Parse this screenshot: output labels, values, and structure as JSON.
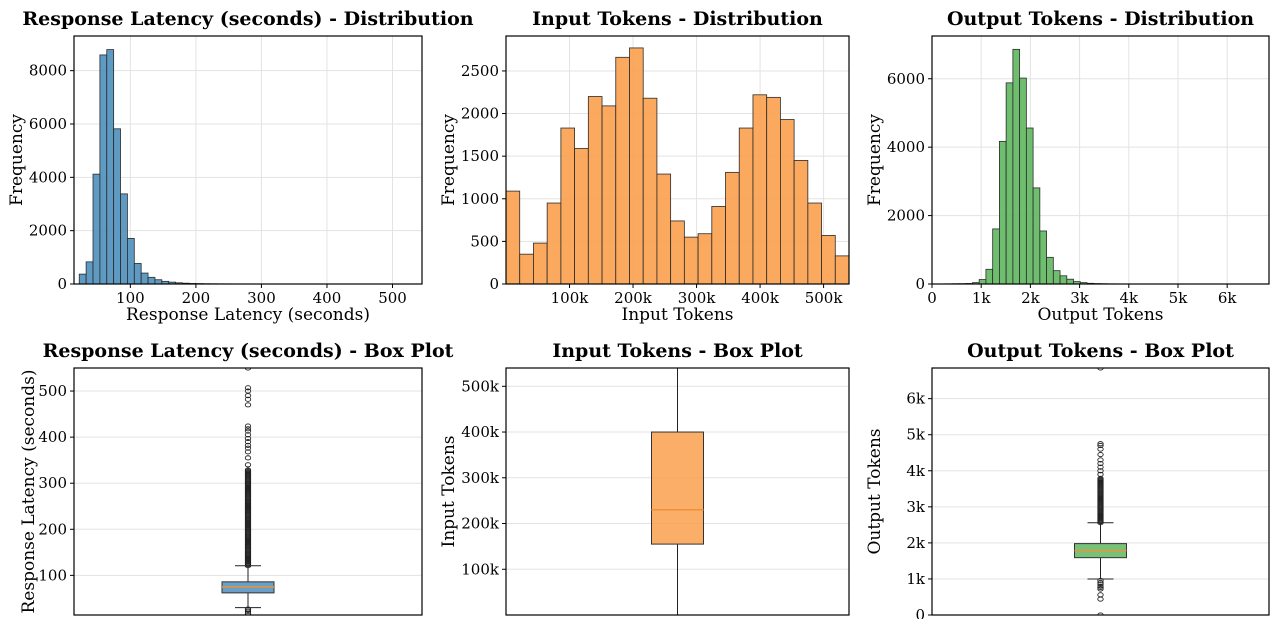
{
  "chart_data": [
    {
      "type": "histogram",
      "title": "Response Latency (seconds) - Distribution",
      "xlabel": "Response Latency (seconds)",
      "ylabel": "Frequency",
      "xlim": [
        14,
        545
      ],
      "ylim": [
        0,
        9300
      ],
      "xticks": [
        100,
        200,
        300,
        400,
        500
      ],
      "xtick_labels": [
        "100",
        "200",
        "300",
        "400",
        "500"
      ],
      "yticks": [
        0,
        2000,
        4000,
        6000,
        8000
      ],
      "ytick_labels": [
        "0",
        "2000",
        "4000",
        "6000",
        "8000"
      ],
      "grid": true,
      "color": "#4e8fbd",
      "bin_start": 22,
      "bin_width": 10.5,
      "values": [
        370,
        830,
        4120,
        8590,
        8790,
        5820,
        3380,
        1710,
        770,
        410,
        250,
        160,
        100,
        70,
        45,
        30,
        20,
        15,
        10,
        8,
        6,
        5,
        4,
        3,
        3,
        2,
        2,
        2,
        2,
        1,
        1,
        1,
        1,
        1,
        1,
        1,
        1,
        1,
        1,
        1,
        1,
        1,
        1,
        1,
        1,
        1,
        1,
        1,
        1,
        1
      ]
    },
    {
      "type": "histogram",
      "title": "Input Tokens - Distribution",
      "xlabel": "Input Tokens",
      "ylabel": "Frequency",
      "xlim": [
        0,
        540000
      ],
      "ylim": [
        0,
        2910
      ],
      "xticks": [
        100000,
        200000,
        300000,
        400000,
        500000
      ],
      "xtick_labels": [
        "100k",
        "200k",
        "300k",
        "400k",
        "500k"
      ],
      "yticks": [
        0,
        500,
        1000,
        1500,
        2000,
        2500
      ],
      "ytick_labels": [
        "0",
        "500",
        "1000",
        "1500",
        "2000",
        "2500"
      ],
      "grid": true,
      "color": "#f9a04e",
      "bin_start": 0,
      "bin_width": 21600,
      "values": [
        1090,
        350,
        480,
        950,
        1830,
        1590,
        2200,
        2090,
        2660,
        2770,
        2180,
        1290,
        740,
        550,
        590,
        910,
        1310,
        1830,
        2220,
        2190,
        1930,
        1450,
        950,
        570,
        330
      ]
    },
    {
      "type": "histogram",
      "title": "Output Tokens - Distribution",
      "xlabel": "Output Tokens",
      "ylabel": "Frequency",
      "xlim": [
        0,
        6850
      ],
      "ylim": [
        0,
        7250
      ],
      "xticks": [
        0,
        1000,
        2000,
        3000,
        4000,
        5000,
        6000
      ],
      "xtick_labels": [
        "0",
        "1k",
        "2k",
        "3k",
        "4k",
        "5k",
        "6k"
      ],
      "yticks": [
        0,
        2000,
        4000,
        6000
      ],
      "ytick_labels": [
        "0",
        "2000",
        "4000",
        "6000"
      ],
      "grid": true,
      "color": "#5fb760",
      "bin_start": 0,
      "bin_width": 137,
      "values": [
        2,
        3,
        5,
        8,
        10,
        15,
        40,
        130,
        430,
        1610,
        4170,
        5880,
        6860,
        6020,
        4560,
        2810,
        1550,
        780,
        390,
        240,
        140,
        70,
        40,
        20,
        12,
        8,
        5,
        4,
        3,
        2,
        2,
        1,
        1,
        1,
        1,
        1,
        1,
        1,
        1,
        1,
        1,
        1,
        1,
        1,
        1,
        1,
        1,
        1,
        1,
        1
      ]
    },
    {
      "type": "box",
      "title": "Response Latency (seconds) - Box Plot",
      "ylabel": "Response Latency (seconds)",
      "ylim": [
        14,
        550
      ],
      "yticks": [
        100,
        200,
        300,
        400,
        500
      ],
      "ytick_labels": [
        "100",
        "200",
        "300",
        "400",
        "500"
      ],
      "grid": true,
      "color": "#4e8fbd",
      "whisker_low": 30,
      "q1": 62,
      "median": 75,
      "q3": 86,
      "whisker_high": 121,
      "outliers_high_dense_to": 330,
      "outliers_high": [
        340,
        355,
        368,
        376,
        382,
        390,
        397,
        405,
        413,
        418,
        424,
        470,
        482,
        490,
        500,
        507,
        550
      ],
      "outliers_low": [
        14,
        18,
        22,
        25,
        27
      ]
    },
    {
      "type": "box",
      "title": "Input Tokens - Box Plot",
      "ylabel": "Input Tokens",
      "ylim": [
        0,
        540000
      ],
      "yticks": [
        100000,
        200000,
        300000,
        400000,
        500000
      ],
      "ytick_labels": [
        "100k",
        "200k",
        "300k",
        "400k",
        "500k"
      ],
      "grid": true,
      "color": "#f9a04e",
      "whisker_low": 0,
      "q1": 155000,
      "median": 230000,
      "q3": 400000,
      "whisker_high": 540000,
      "outliers_high": [],
      "outliers_low": []
    },
    {
      "type": "box",
      "title": "Output Tokens - Box Plot",
      "ylabel": "Output Tokens",
      "ylim": [
        0,
        6850
      ],
      "yticks": [
        0,
        1000,
        2000,
        3000,
        4000,
        5000,
        6000
      ],
      "ytick_labels": [
        "0",
        "1k",
        "2k",
        "3k",
        "4k",
        "5k",
        "6k"
      ],
      "grid": true,
      "color": "#5fb760",
      "whisker_low": 1000,
      "q1": 1590,
      "median": 1790,
      "q3": 1980,
      "whisker_high": 2560,
      "outliers_high_dense_to": 3800,
      "outliers_high": [
        3900,
        4000,
        4100,
        4200,
        4300,
        4450,
        4600,
        4700,
        4750,
        6850
      ],
      "outliers_low": [
        960,
        900,
        860,
        800,
        760,
        720,
        560,
        440,
        0
      ]
    }
  ]
}
